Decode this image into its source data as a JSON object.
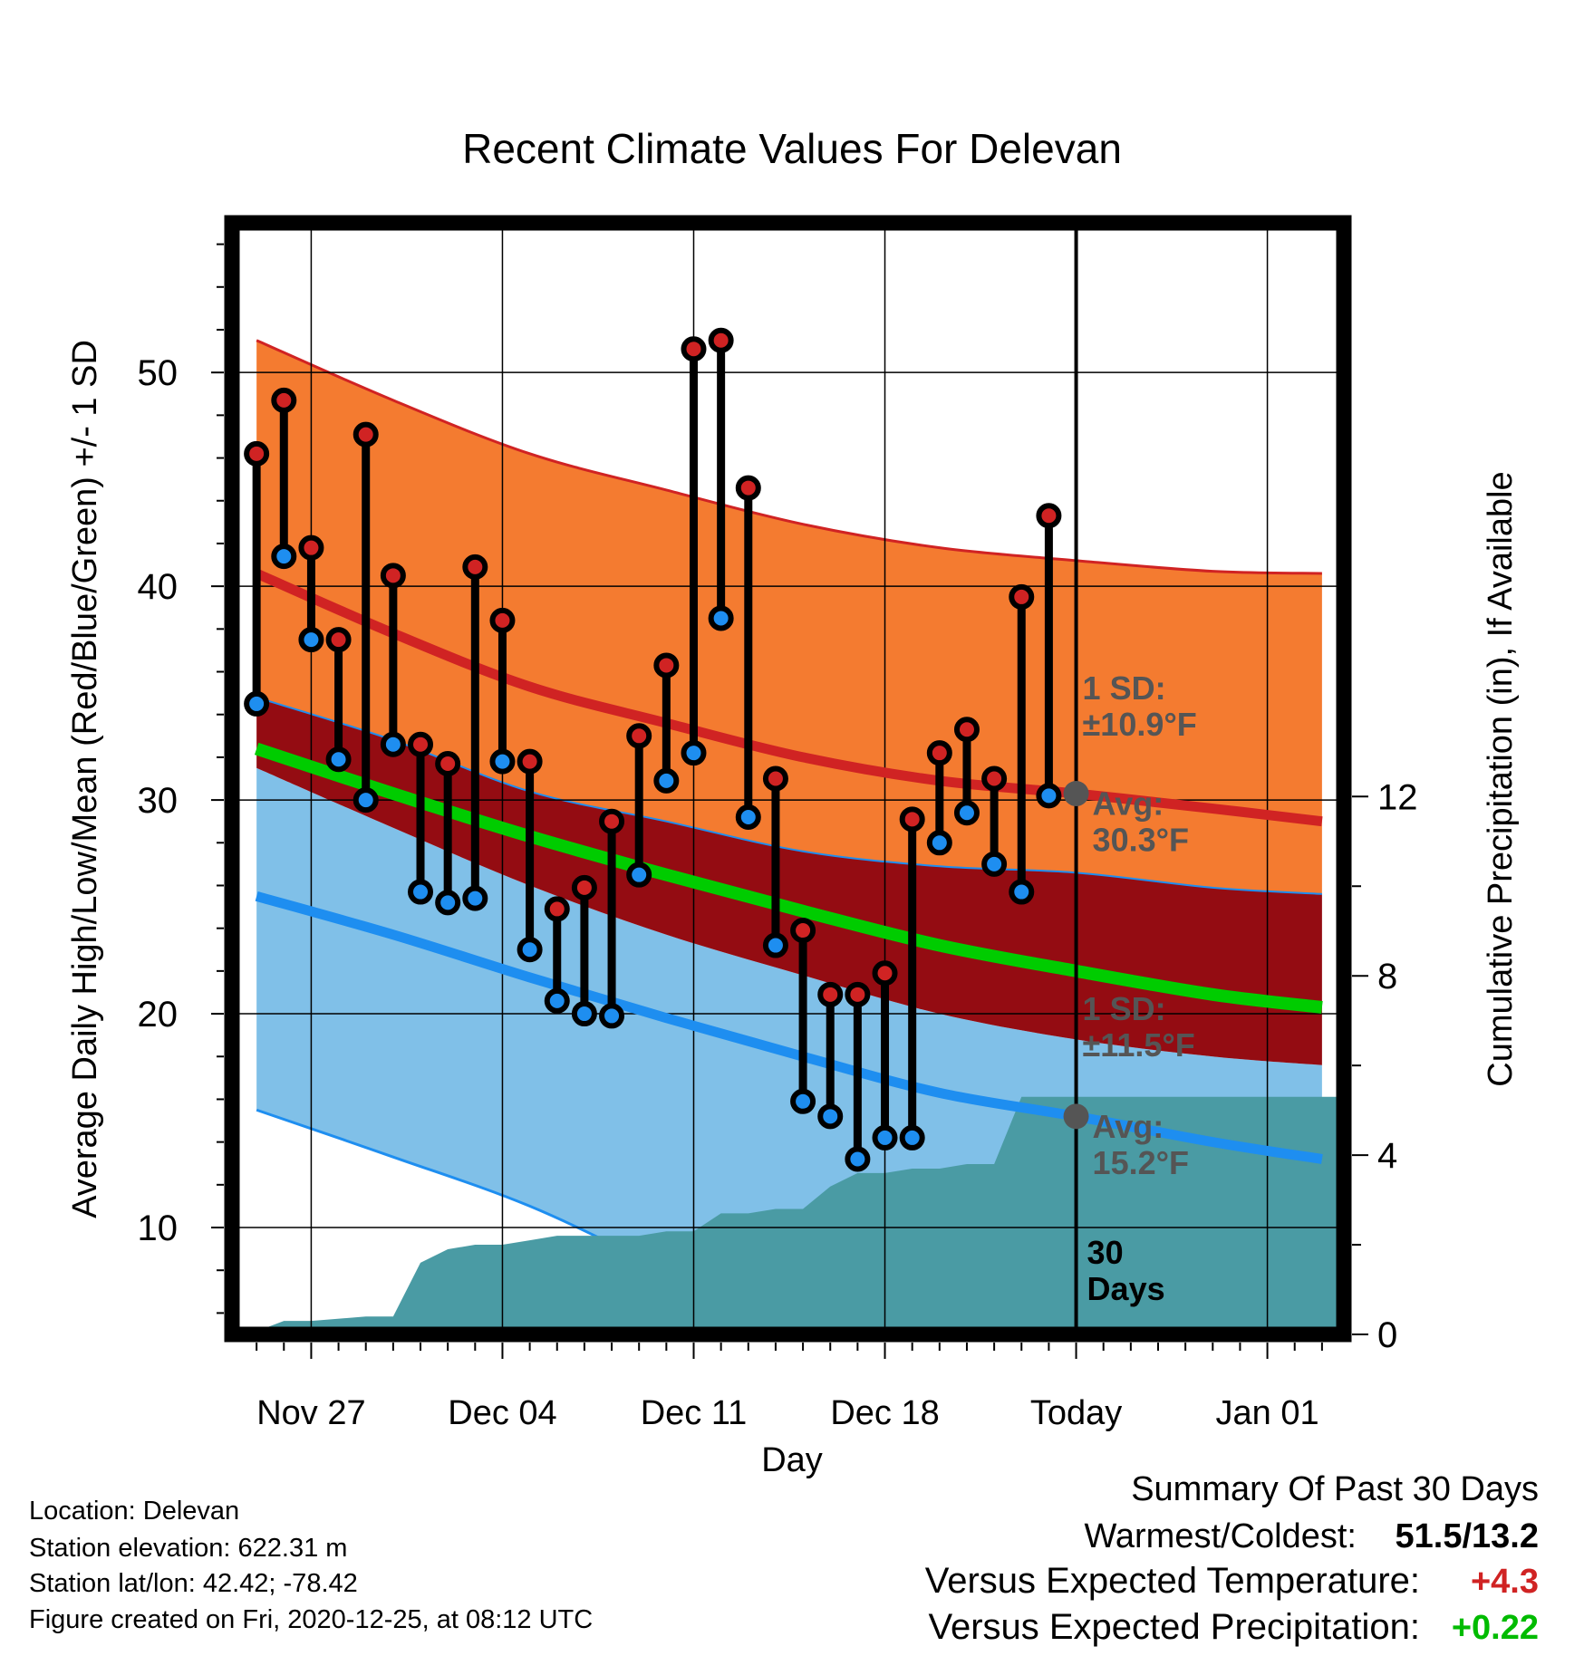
{
  "chart_data": {
    "type": "line",
    "title": "Recent Climate Values For Delevan",
    "xlabel": "Day",
    "ylabel": "Average Daily High/Low/Mean (Red/Blue/Green) +/- 1 SD",
    "y2label": "Cumulative Precipitation (in), If Available",
    "x_tick_labels": [
      "Nov 27",
      "Dec 04",
      "Dec 11",
      "Dec 18",
      "Today",
      "Jan 01"
    ],
    "x_tick_days": [
      0,
      7,
      14,
      21,
      28,
      35
    ],
    "x_range_days": [
      -2.9,
      37.8
    ],
    "ylim": [
      5,
      57
    ],
    "y_ticks": [
      10,
      20,
      30,
      40,
      50
    ],
    "y2lim": [
      0,
      24.8
    ],
    "y2_ticks": [
      0,
      4,
      8,
      12
    ],
    "days": [
      "Nov 25",
      "Nov 26",
      "Nov 27",
      "Nov 28",
      "Nov 29",
      "Nov 30",
      "Dec 01",
      "Dec 02",
      "Dec 03",
      "Dec 04",
      "Dec 05",
      "Dec 06",
      "Dec 07",
      "Dec 08",
      "Dec 09",
      "Dec 10",
      "Dec 11",
      "Dec 12",
      "Dec 13",
      "Dec 14",
      "Dec 15",
      "Dec 16",
      "Dec 17",
      "Dec 18",
      "Dec 19",
      "Dec 20",
      "Dec 21",
      "Dec 22",
      "Dec 23",
      "Dec 24"
    ],
    "daily_high": [
      46.2,
      48.7,
      41.8,
      37.5,
      47.1,
      40.5,
      32.6,
      31.7,
      40.9,
      38.4,
      31.8,
      24.9,
      25.9,
      29.0,
      33.0,
      36.3,
      51.1,
      51.5,
      44.6,
      31.0,
      23.9,
      20.9,
      20.9,
      21.9,
      29.1,
      32.2,
      33.3,
      31.0,
      39.5,
      43.3
    ],
    "daily_low": [
      34.5,
      41.4,
      37.5,
      31.9,
      30.0,
      32.6,
      25.7,
      25.2,
      25.4,
      31.8,
      23.0,
      20.6,
      20.0,
      19.9,
      26.5,
      30.9,
      32.2,
      38.5,
      29.2,
      23.2,
      15.9,
      15.2,
      13.2,
      14.2,
      14.2,
      28.0,
      29.4,
      27.0,
      25.7,
      30.2
    ],
    "normal_curve_days": [
      -2,
      3,
      8,
      13,
      18,
      23,
      28,
      33,
      37
    ],
    "normal_high": [
      40.6,
      37.8,
      35.3,
      33.6,
      32.0,
      30.9,
      30.3,
      29.6,
      29.0
    ],
    "normal_high_plus_sd": [
      51.5,
      48.7,
      46.2,
      44.5,
      42.9,
      41.8,
      41.2,
      40.7,
      40.6
    ],
    "normal_high_minus_sd": [
      34.8,
      32.8,
      30.4,
      29.0,
      27.6,
      26.9,
      26.6,
      25.9,
      25.6
    ],
    "normal_mean": [
      32.4,
      30.3,
      28.3,
      26.5,
      24.8,
      23.2,
      22.0,
      20.9,
      20.3
    ],
    "normal_low": [
      25.5,
      23.7,
      21.7,
      19.8,
      18.0,
      16.3,
      15.2,
      14.0,
      13.2
    ],
    "normal_low_plus_sd": [
      31.5,
      28.7,
      26.0,
      23.7,
      21.8,
      20.0,
      18.8,
      18.0,
      17.6
    ],
    "normal_low_minus_sd": [
      15.5,
      13.3,
      11.0,
      8.0,
      5.0,
      5.0,
      5.0,
      5.0,
      5.0
    ],
    "precip_days": [
      -2.3,
      -1.0,
      0.0,
      2.0,
      3.0,
      4.0,
      5.0,
      6.0,
      7.0,
      8.0,
      9.0,
      10.0,
      11.0,
      12.0,
      13.0,
      14.0,
      15.0,
      16.0,
      17.0,
      18.0,
      19.0,
      20.0,
      21.0,
      22.0,
      23.0,
      24.0,
      25.0,
      26.0,
      27.0,
      28.0,
      37.8
    ],
    "cumulative_precip": [
      0.0,
      0.3,
      0.3,
      0.4,
      0.4,
      1.6,
      1.9,
      2.0,
      2.0,
      2.1,
      2.2,
      2.2,
      2.2,
      2.2,
      2.3,
      2.3,
      2.7,
      2.7,
      2.8,
      2.8,
      3.3,
      3.6,
      3.6,
      3.7,
      3.7,
      3.8,
      3.8,
      5.3,
      5.3,
      5.3,
      5.3
    ],
    "annotations": [
      {
        "label": "1 SD:",
        "value": "±10.9°F"
      },
      {
        "label": "Avg:",
        "value": "30.3°F"
      },
      {
        "label": "1 SD:",
        "value": "±11.5°F"
      },
      {
        "label": "Avg:",
        "value": "15.2°F"
      },
      {
        "label": "30",
        "value": "Days"
      }
    ],
    "colors": {
      "high": "#d02323",
      "high_band": "#f47b30",
      "overlap_band": "#940c12",
      "mean": "#00cc00",
      "low": "#1e8ef0",
      "low_band": "#80c0e8",
      "precip": "#4a9ba4",
      "annotation": "#555555"
    }
  },
  "info": {
    "location": "Location: Delevan",
    "elevation": "Station elevation: 622.31 m",
    "latlon": "Station lat/lon: 42.42; -78.42",
    "created": "Figure created on Fri, 2020-12-25, at 08:12 UTC"
  },
  "summary": {
    "title": "Summary Of Past 30 Days",
    "warm_cold_label": "Warmest/Coldest:",
    "warm_cold_value": "51.5/13.2",
    "temp_label": "Versus Expected Temperature:",
    "temp_value": "+4.3",
    "temp_color": "#d02323",
    "precip_label": "Versus Expected Precipitation:",
    "precip_value": "+0.22",
    "precip_color": "#00bb00"
  }
}
